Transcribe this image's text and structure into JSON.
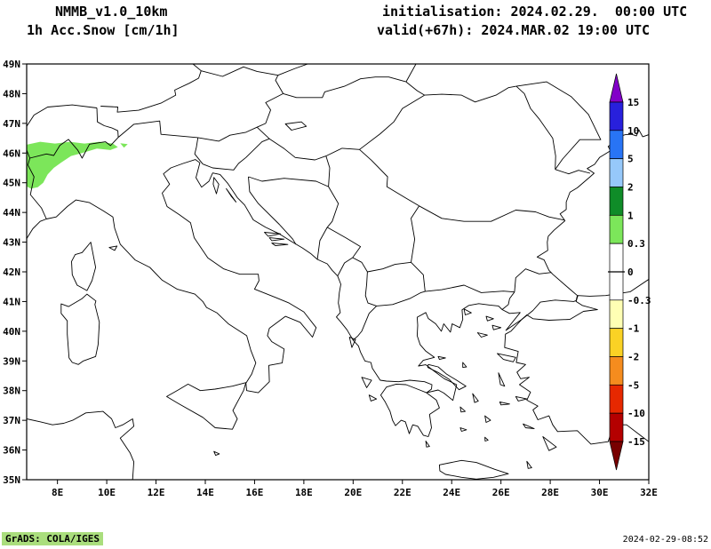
{
  "header": {
    "model": "NMMB_v1.0_10km",
    "field": "1h Acc.Snow [cm/1h]",
    "init": "initialisation: 2024.02.29.  00:00 UTC",
    "valid": "valid(+67h): 2024.MAR.02 19:00 UTC"
  },
  "axes": {
    "lat_labels": [
      "49N",
      "48N",
      "47N",
      "46N",
      "45N",
      "44N",
      "43N",
      "42N",
      "41N",
      "40N",
      "39N",
      "38N",
      "37N",
      "36N",
      "35N"
    ],
    "lon_labels": [
      "8E",
      "10E",
      "12E",
      "14E",
      "16E",
      "18E",
      "20E",
      "22E",
      "24E",
      "26E",
      "28E",
      "30E",
      "32E"
    ]
  },
  "colorbar": {
    "labels": [
      "15",
      "10",
      "5",
      "2",
      "1",
      "0.3",
      "0",
      "-0.3",
      "-1",
      "-2",
      "-5",
      "-10",
      "-15"
    ],
    "segment_colors": [
      "#8200c8",
      "#2820dc",
      "#2874f5",
      "#96c8fa",
      "#0f8c28",
      "#7ce65a",
      "#ffffff",
      "#ffffff",
      "#ffffb4",
      "#fad225",
      "#f58c1e",
      "#e62800",
      "#b40000",
      "#780000"
    ]
  },
  "chart_data": {
    "type": "map-shaded-contour",
    "title": "1h Acc.Snow [cm/1h]",
    "model": "NMMB_v1.0_10km",
    "init_time": "2024.02.29 00:00 UTC",
    "valid_time": "2024.MAR.02 19:00 UTC (+67h)",
    "units": "cm/1h",
    "lon_range_deg_east": [
      6.75,
      32
    ],
    "lat_range_deg_north": [
      35,
      49
    ],
    "contour_levels": [
      -15,
      -10,
      -5,
      -2,
      -1,
      -0.3,
      0,
      0.3,
      1,
      2,
      5,
      10,
      15
    ],
    "shaded_regions": [
      {
        "value_range": "0.3 to 1 cm/1h",
        "color": "#7ce65a",
        "location": "Alpine arc, NW Italy / S Switzerland, approx 44.8-46.4N, 6.75-10.9E",
        "polygons": [
          [
            [
              6.75,
              46.28
            ],
            [
              7.3,
              46.38
            ],
            [
              7.9,
              46.32
            ],
            [
              8.5,
              46.38
            ],
            [
              9.1,
              46.32
            ],
            [
              9.7,
              46.38
            ],
            [
              10.25,
              46.32
            ],
            [
              10.45,
              46.2
            ],
            [
              10.15,
              46.1
            ],
            [
              9.6,
              46.15
            ],
            [
              9.0,
              46.0
            ],
            [
              8.55,
              45.9
            ],
            [
              8.15,
              45.68
            ],
            [
              7.85,
              45.5
            ],
            [
              7.6,
              45.28
            ],
            [
              7.42,
              45.0
            ],
            [
              7.2,
              44.85
            ],
            [
              6.92,
              44.8
            ],
            [
              6.75,
              44.88
            ]
          ],
          [
            [
              10.55,
              46.33
            ],
            [
              10.85,
              46.3
            ],
            [
              10.7,
              46.18
            ]
          ]
        ]
      }
    ]
  },
  "footer": {
    "grads": "GrADS: COLA/IGES",
    "stamp_bg": "#aade7d",
    "timestamp": "2024-02-29-08:52"
  }
}
